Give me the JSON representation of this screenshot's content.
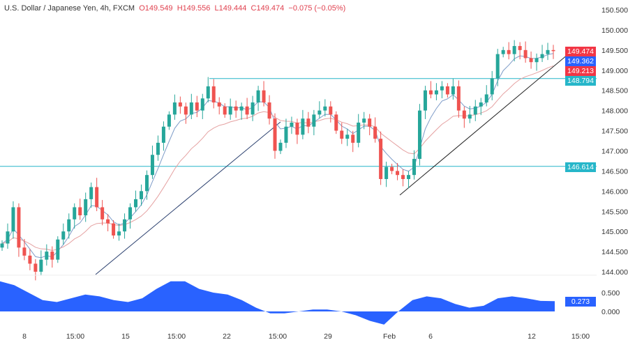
{
  "header": {
    "symbol": "U.S. Dollar / Japanese Yen, 4h, FXCM",
    "open": "O149.549",
    "high": "H149.556",
    "low": "L149.444",
    "close": "C149.474",
    "change": "−0.075 (−0.05%)"
  },
  "price_axis": {
    "ticks": [
      "150.500",
      "150.000",
      "149.500",
      "149.000",
      "148.500",
      "148.000",
      "147.500",
      "147.000",
      "146.500",
      "146.000",
      "145.500",
      "145.000",
      "144.500",
      "144.000"
    ]
  },
  "price_labels": [
    {
      "text": "149.474",
      "color": "#f23645"
    },
    {
      "text": "149.362",
      "color": "#2962ff"
    },
    {
      "text": "149.213",
      "color": "#f23645"
    },
    {
      "text": "148.794",
      "color": "#26b6c9"
    },
    {
      "text": "146.614",
      "color": "#26b6c9"
    }
  ],
  "levels": [
    148.794,
    146.614
  ],
  "indicator": {
    "ticks": [
      "0.500",
      "0.000"
    ],
    "value_label": "0.273",
    "color": "#2962ff"
  },
  "time_axis": [
    "8",
    "15:00",
    "15",
    "15:00",
    "22",
    "15:00",
    "29",
    "Feb",
    "6",
    "12",
    "15:00"
  ],
  "colors": {
    "up": "#26a69a",
    "down": "#ef5350",
    "fast_ma": "#7e9cc8",
    "slow_ma": "#e5a1a1",
    "level": "#26b6c9"
  },
  "chart_data": {
    "type": "candlestick",
    "closes": [
      144.7,
      145.0,
      145.6,
      144.6,
      144.4,
      144.2,
      144.0,
      144.3,
      144.5,
      144.3,
      144.8,
      145.0,
      145.3,
      145.6,
      145.4,
      145.8,
      146.1,
      145.6,
      145.3,
      145.2,
      144.9,
      145.0,
      145.3,
      145.6,
      145.8,
      146.0,
      146.4,
      146.9,
      147.2,
      147.6,
      147.9,
      148.2,
      148.1,
      147.9,
      148.2,
      148.0,
      148.3,
      148.6,
      148.2,
      148.1,
      147.9,
      148.1,
      148.0,
      148.1,
      147.9,
      148.2,
      148.5,
      148.2,
      147.8,
      147.0,
      147.2,
      147.6,
      147.7,
      147.4,
      147.8,
      147.6,
      147.9,
      148.0,
      148.1,
      147.9,
      147.5,
      147.3,
      147.4,
      147.2,
      147.7,
      147.8,
      147.6,
      147.3,
      146.3,
      146.6,
      146.5,
      146.4,
      146.3,
      146.4,
      146.8,
      148.0,
      148.5,
      148.4,
      148.5,
      148.6,
      148.4,
      148.6,
      148.0,
      147.8,
      147.9,
      148.1,
      148.2,
      148.4,
      148.8,
      149.4,
      149.5,
      149.4,
      149.6,
      149.5,
      149.3,
      149.2,
      149.3,
      149.4,
      149.5,
      149.474
    ],
    "oscillator": [
      0.8,
      0.7,
      0.5,
      0.3,
      0.25,
      0.35,
      0.45,
      0.4,
      0.3,
      0.25,
      0.35,
      0.6,
      0.8,
      0.8,
      0.6,
      0.5,
      0.45,
      0.3,
      0.1,
      -0.05,
      -0.05,
      0.0,
      0.05,
      0.05,
      0.0,
      -0.1,
      -0.25,
      -0.35,
      0.0,
      0.3,
      0.4,
      0.35,
      0.2,
      0.1,
      0.15,
      0.35,
      0.4,
      0.35,
      0.28,
      0.273
    ],
    "ylim": [
      144.0,
      150.5
    ]
  }
}
